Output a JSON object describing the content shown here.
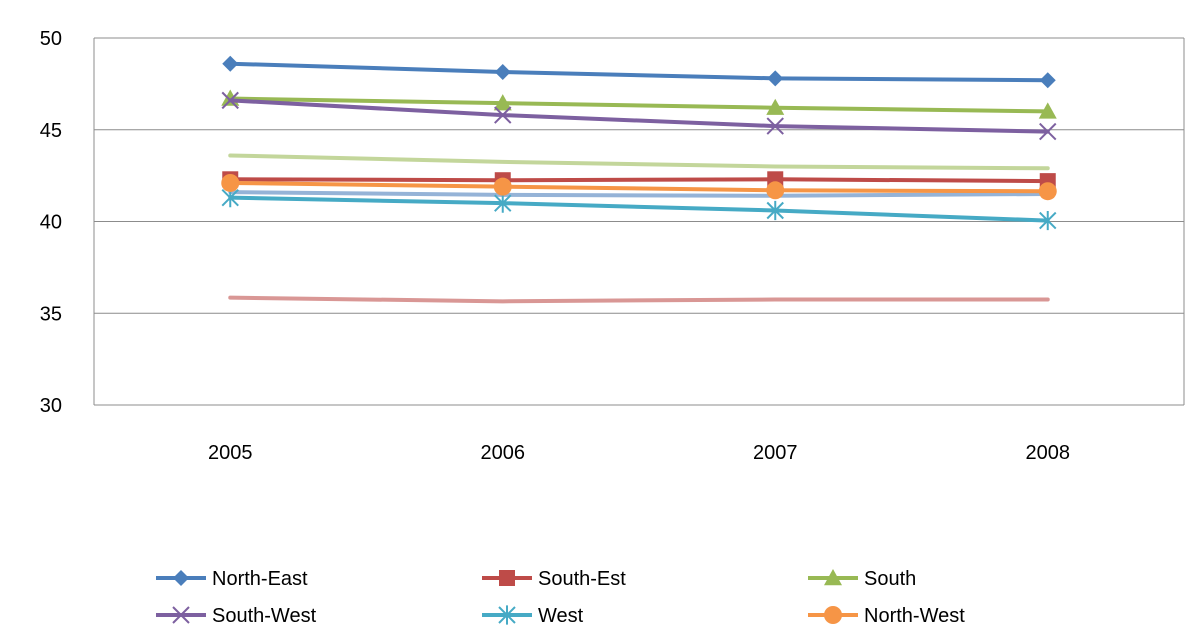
{
  "chart_data": {
    "type": "line",
    "categories": [
      "2005",
      "2006",
      "2007",
      "2008"
    ],
    "ylim": [
      30,
      50
    ],
    "yticks": [
      30,
      35,
      40,
      45,
      50
    ],
    "grid": true,
    "legend_position": "bottom",
    "series": [
      {
        "name": "North-East",
        "values": [
          48.6,
          48.15,
          47.8,
          47.7
        ],
        "color": "#4a7ebb",
        "marker": "diamond"
      },
      {
        "name": "South-Est",
        "values": [
          42.3,
          42.25,
          42.3,
          42.2
        ],
        "color": "#be4b48",
        "marker": "square"
      },
      {
        "name": "South",
        "values": [
          46.7,
          46.45,
          46.2,
          46.0
        ],
        "color": "#98b954",
        "marker": "triangle"
      },
      {
        "name": "South-West",
        "values": [
          46.6,
          45.8,
          45.2,
          44.9
        ],
        "color": "#7d60a0",
        "marker": "x"
      },
      {
        "name": "West",
        "values": [
          41.3,
          41.0,
          40.6,
          40.05
        ],
        "color": "#46aac5",
        "marker": "star"
      },
      {
        "name": "North-West",
        "values": [
          42.1,
          41.9,
          41.7,
          41.65
        ],
        "color": "#f69546",
        "marker": "circle"
      },
      {
        "values": [
          41.6,
          41.45,
          41.4,
          41.5
        ],
        "color": "#95b3d7",
        "marker": "none"
      },
      {
        "values": [
          35.85,
          35.65,
          35.75,
          35.75
        ],
        "color": "#d99795",
        "marker": "none"
      },
      {
        "values": [
          43.6,
          43.25,
          43.0,
          42.9
        ],
        "color": "#c3d69b",
        "marker": "none"
      }
    ]
  }
}
